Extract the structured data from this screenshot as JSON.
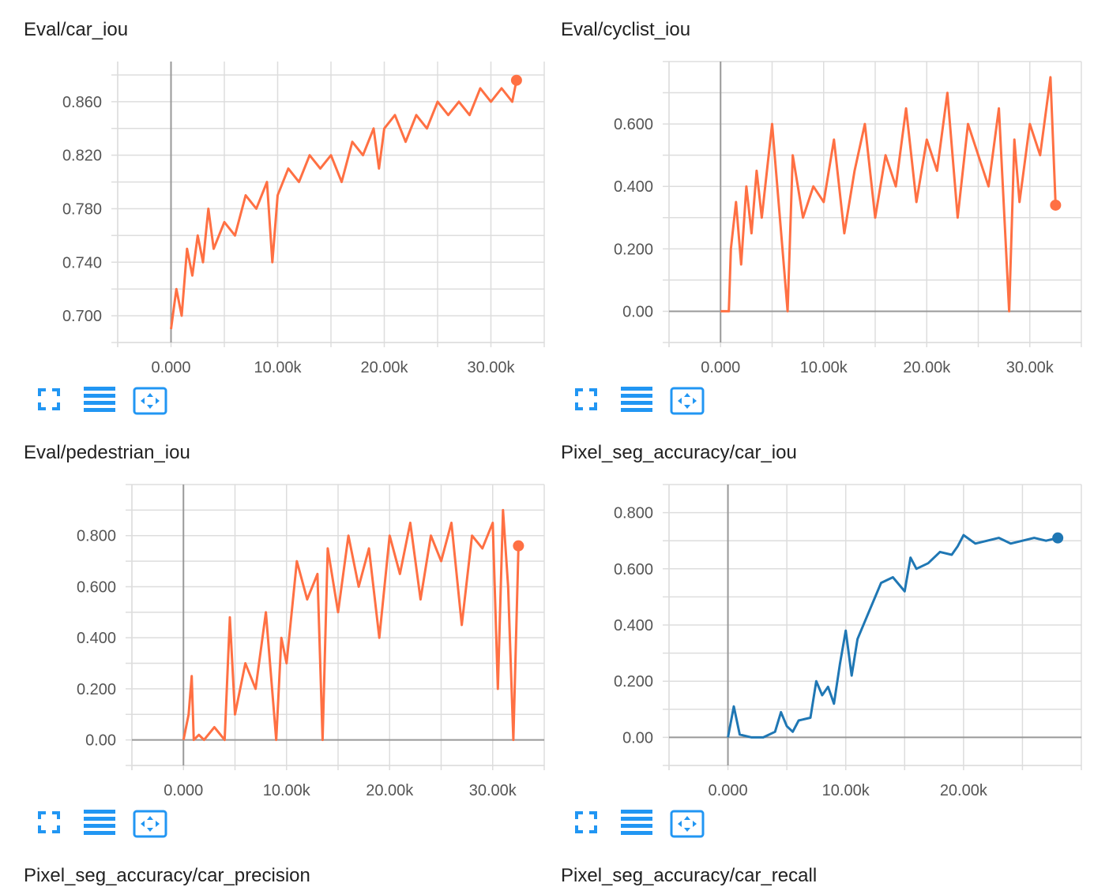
{
  "colors": {
    "orange": "#ff7043",
    "blue": "#1f77b4",
    "button_blue": "#2196f3",
    "grid": "#dddddd",
    "zero_line": "#999999"
  },
  "icons": {
    "expand": "fullscreen-icon",
    "log": "log-scale-icon",
    "fit": "fit-domain-icon"
  },
  "footer_titles": [
    "Pixel_seg_accuracy/car_precision",
    "Pixel_seg_accuracy/car_recall"
  ],
  "chart_data": [
    {
      "type": "line",
      "title": "Eval/car_iou",
      "color": "#ff7043",
      "xlim": [
        -5000,
        35000
      ],
      "ylim": [
        0.68,
        0.89
      ],
      "xticks": [
        0,
        10000,
        20000,
        30000
      ],
      "xtick_labels": [
        "0.000",
        "10.00k",
        "20.00k",
        "30.00k"
      ],
      "yticks": [
        0.7,
        0.74,
        0.78,
        0.82,
        0.86
      ],
      "ytick_labels": [
        "0.700",
        "0.740",
        "0.780",
        "0.820",
        "0.860"
      ],
      "series": [
        {
          "name": "Eval/car_iou",
          "x": [
            0,
            500,
            1000,
            1500,
            2000,
            2500,
            3000,
            3500,
            4000,
            5000,
            6000,
            7000,
            8000,
            9000,
            9500,
            10000,
            11000,
            12000,
            13000,
            14000,
            15000,
            16000,
            17000,
            18000,
            19000,
            19500,
            20000,
            21000,
            22000,
            23000,
            24000,
            25000,
            26000,
            27000,
            28000,
            29000,
            30000,
            31000,
            32000,
            32400
          ],
          "values": [
            0.69,
            0.72,
            0.7,
            0.75,
            0.73,
            0.76,
            0.74,
            0.78,
            0.75,
            0.77,
            0.76,
            0.79,
            0.78,
            0.8,
            0.74,
            0.79,
            0.81,
            0.8,
            0.82,
            0.81,
            0.82,
            0.8,
            0.83,
            0.82,
            0.84,
            0.81,
            0.84,
            0.85,
            0.83,
            0.85,
            0.84,
            0.86,
            0.85,
            0.86,
            0.85,
            0.87,
            0.86,
            0.87,
            0.86,
            0.876
          ]
        }
      ]
    },
    {
      "type": "line",
      "title": "Eval/cyclist_iou",
      "color": "#ff7043",
      "xlim": [
        -5000,
        35000
      ],
      "ylim": [
        -0.1,
        0.8
      ],
      "xticks": [
        0,
        10000,
        20000,
        30000
      ],
      "xtick_labels": [
        "0.000",
        "10.00k",
        "20.00k",
        "30.00k"
      ],
      "yticks": [
        0,
        0.2,
        0.4,
        0.6
      ],
      "ytick_labels": [
        "0.00",
        "0.200",
        "0.400",
        "0.600"
      ],
      "series": [
        {
          "name": "Eval/cyclist_iou",
          "x": [
            0,
            500,
            800,
            1000,
            1500,
            2000,
            2500,
            3000,
            3500,
            4000,
            5000,
            6000,
            6500,
            7000,
            8000,
            9000,
            10000,
            11000,
            12000,
            13000,
            14000,
            15000,
            16000,
            17000,
            18000,
            19000,
            20000,
            21000,
            22000,
            23000,
            24000,
            25000,
            26000,
            27000,
            28000,
            28500,
            29000,
            30000,
            31000,
            32000,
            32500
          ],
          "values": [
            0.0,
            0.0,
            0.0,
            0.2,
            0.35,
            0.15,
            0.4,
            0.25,
            0.45,
            0.3,
            0.6,
            0.2,
            0.0,
            0.5,
            0.3,
            0.4,
            0.35,
            0.55,
            0.25,
            0.45,
            0.6,
            0.3,
            0.5,
            0.4,
            0.65,
            0.35,
            0.55,
            0.45,
            0.7,
            0.3,
            0.6,
            0.5,
            0.4,
            0.65,
            0.0,
            0.55,
            0.35,
            0.6,
            0.5,
            0.75,
            0.34
          ]
        }
      ]
    },
    {
      "type": "line",
      "title": "Eval/pedestrian_iou",
      "color": "#ff7043",
      "xlim": [
        -5000,
        35000
      ],
      "ylim": [
        -0.1,
        1.0
      ],
      "xticks": [
        0,
        10000,
        20000,
        30000
      ],
      "xtick_labels": [
        "0.000",
        "10.00k",
        "20.00k",
        "30.00k"
      ],
      "yticks": [
        0,
        0.2,
        0.4,
        0.6,
        0.8
      ],
      "ytick_labels": [
        "0.00",
        "0.200",
        "0.400",
        "0.600",
        "0.800"
      ],
      "series": [
        {
          "name": "Eval/pedestrian_iou",
          "x": [
            0,
            500,
            800,
            1000,
            1500,
            2000,
            3000,
            4000,
            4500,
            5000,
            6000,
            7000,
            8000,
            9000,
            9500,
            10000,
            11000,
            12000,
            13000,
            13500,
            14000,
            15000,
            16000,
            17000,
            18000,
            19000,
            20000,
            21000,
            22000,
            23000,
            24000,
            25000,
            26000,
            27000,
            28000,
            29000,
            30000,
            30500,
            31000,
            31500,
            32000,
            32500
          ],
          "values": [
            0.0,
            0.1,
            0.25,
            0.0,
            0.02,
            0.0,
            0.05,
            0.0,
            0.48,
            0.1,
            0.3,
            0.2,
            0.5,
            0.0,
            0.4,
            0.3,
            0.7,
            0.55,
            0.65,
            0.0,
            0.75,
            0.5,
            0.8,
            0.6,
            0.75,
            0.4,
            0.8,
            0.65,
            0.85,
            0.55,
            0.8,
            0.7,
            0.85,
            0.45,
            0.8,
            0.75,
            0.85,
            0.2,
            0.9,
            0.6,
            0.0,
            0.76
          ]
        }
      ]
    },
    {
      "type": "line",
      "title": "Pixel_seg_accuracy/car_iou",
      "color": "#1f77b4",
      "xlim": [
        -5000,
        30000
      ],
      "ylim": [
        -0.1,
        0.9
      ],
      "xticks": [
        0,
        10000,
        20000
      ],
      "xtick_labels": [
        "0.000",
        "10.00k",
        "20.00k"
      ],
      "yticks": [
        0,
        0.2,
        0.4,
        0.6,
        0.8
      ],
      "ytick_labels": [
        "0.00",
        "0.200",
        "0.400",
        "0.600",
        "0.800"
      ],
      "series": [
        {
          "name": "Pixel_seg_accuracy/car_iou",
          "x": [
            0,
            500,
            1000,
            2000,
            3000,
            4000,
            4500,
            5000,
            5500,
            6000,
            7000,
            7500,
            8000,
            8500,
            9000,
            9500,
            10000,
            10500,
            11000,
            12000,
            13000,
            14000,
            15000,
            15500,
            16000,
            17000,
            18000,
            19000,
            19500,
            20000,
            21000,
            22000,
            23000,
            24000,
            25000,
            26000,
            27000,
            28000
          ],
          "values": [
            0.0,
            0.11,
            0.01,
            0.0,
            0.0,
            0.02,
            0.09,
            0.04,
            0.02,
            0.06,
            0.07,
            0.2,
            0.15,
            0.18,
            0.12,
            0.26,
            0.38,
            0.22,
            0.35,
            0.45,
            0.55,
            0.57,
            0.52,
            0.64,
            0.6,
            0.62,
            0.66,
            0.65,
            0.68,
            0.72,
            0.69,
            0.7,
            0.71,
            0.69,
            0.7,
            0.71,
            0.7,
            0.71
          ]
        }
      ]
    }
  ]
}
